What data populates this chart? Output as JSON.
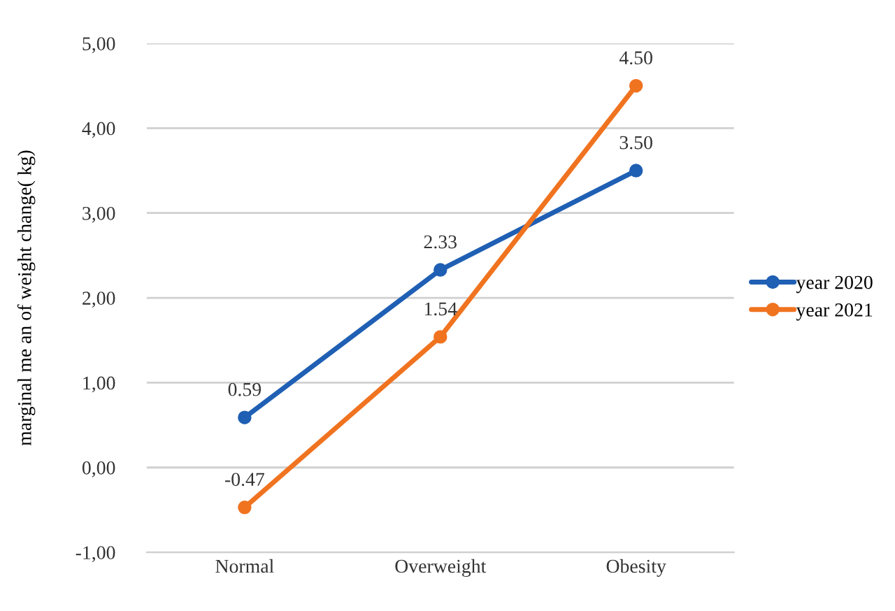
{
  "chart_data": {
    "type": "line",
    "ylabel": "marginal me an of weight change( kg)",
    "categories": [
      "Normal",
      "Overweight",
      "Obesity"
    ],
    "series": [
      {
        "name": "year 2020",
        "color": "#1f5fb4",
        "values": [
          0.59,
          2.33,
          3.5
        ],
        "value_labels": [
          "0.59",
          "2.33",
          "3.50"
        ]
      },
      {
        "name": "year 2021",
        "color": "#f07320",
        "values": [
          -0.47,
          1.54,
          4.5
        ],
        "value_labels": [
          "-0.47",
          "1.54",
          "4.50"
        ]
      }
    ],
    "ylim": [
      -1,
      5
    ],
    "yticks": [
      {
        "value": -1,
        "label": "-1,00"
      },
      {
        "value": 0,
        "label": "0,00"
      },
      {
        "value": 1,
        "label": "1,00"
      },
      {
        "value": 2,
        "label": "2,00"
      },
      {
        "value": 3,
        "label": "3,00"
      },
      {
        "value": 4,
        "label": "4,00"
      },
      {
        "value": 5,
        "label": "5,00"
      }
    ],
    "grid": "y",
    "legend": "right",
    "marker": "circle",
    "line_style": "solid"
  }
}
